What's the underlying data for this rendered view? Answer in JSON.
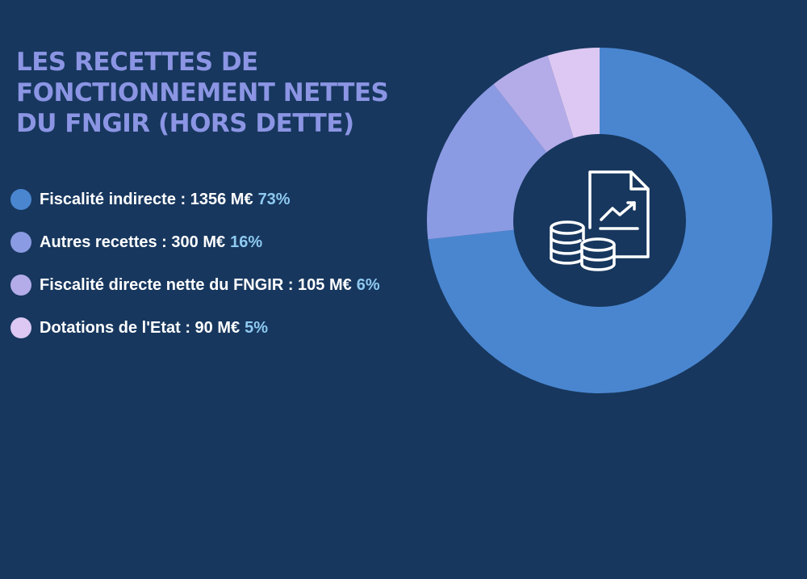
{
  "header": {
    "title": "LES RECETTES DE FONCTIONNEMENT NETTES DU FNGIR (HORS DETTE)"
  },
  "legend": [
    {
      "label": "Fiscalité indirecte : 1356 M€",
      "pct": "73%",
      "color": "#4a86d0"
    },
    {
      "label": "Autres recettes : 300 M€",
      "pct": "16%",
      "color": "#8b9be3"
    },
    {
      "label": "Fiscalité directe nette du FNGIR : 105 M€",
      "pct": "6%",
      "color": "#b4ace9"
    },
    {
      "label": "Dotations de l'Etat : 90 M€",
      "pct": "5%",
      "color": "#dcc8f2"
    }
  ],
  "chart_data": {
    "type": "pie",
    "categories": [
      "Fiscalité indirecte",
      "Autres recettes",
      "Fiscalité directe nette du FNGIR",
      "Dotations de l'Etat"
    ],
    "values": [
      1356,
      300,
      105,
      90
    ],
    "percentages": [
      73,
      16,
      6,
      5
    ],
    "unit": "M€",
    "donut": true,
    "colors": [
      "#4a86d0",
      "#8b9be3",
      "#b4ace9",
      "#dcc8f2"
    ],
    "center_icon": "finance-report-coins-icon",
    "title": "LES RECETTES DE FONCTIONNEMENT NETTES DU FNGIR (HORS DETTE)"
  }
}
